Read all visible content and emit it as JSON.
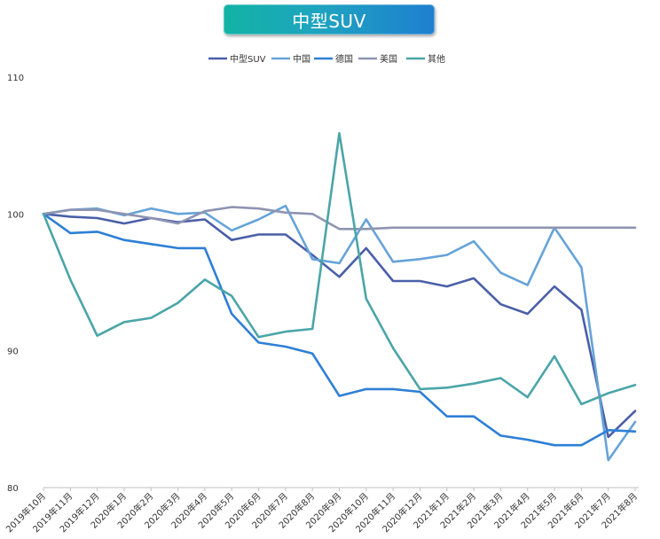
{
  "chart_data": {
    "type": "line",
    "title": "中型SUV",
    "categories": [
      "2019年10月",
      "2019年11月",
      "2019年12月",
      "2020年1月",
      "2020年2月",
      "2020年3月",
      "2020年4月",
      "2020年5月",
      "2020年6月",
      "2020年7月",
      "2020年8月",
      "2020年9月",
      "2020年10月",
      "2020年11月",
      "2020年12月",
      "2021年1月",
      "2021年2月",
      "2021年3月",
      "2021年4月",
      "2021年5月",
      "2021年6月",
      "2021年7月",
      "2021年8月"
    ],
    "ylim": [
      80,
      110
    ],
    "yticks": [
      80,
      90,
      100,
      110
    ],
    "grid": false,
    "legend_position": "top",
    "series": [
      {
        "name": "中型SUV",
        "color": "#4a5fa8",
        "values": [
          100,
          99.8,
          99.7,
          99.3,
          99.7,
          99.4,
          99.6,
          98.1,
          98.5,
          98.5,
          97.0,
          95.4,
          97.5,
          95.1,
          95.1,
          94.7,
          95.3,
          93.4,
          92.7,
          94.7,
          93.0,
          83.7,
          85.6
        ]
      },
      {
        "name": "中国",
        "color": "#66a3d9",
        "values": [
          100,
          100.3,
          100.4,
          99.9,
          100.4,
          100.0,
          100.1,
          98.8,
          99.6,
          100.6,
          96.7,
          96.4,
          99.6,
          96.5,
          96.7,
          97.0,
          98.0,
          95.7,
          94.8,
          99.0,
          96.1,
          82.0,
          84.8
        ]
      },
      {
        "name": "德国",
        "color": "#2e7fd6",
        "values": [
          100,
          98.6,
          98.7,
          98.1,
          97.8,
          97.5,
          97.5,
          92.7,
          90.6,
          90.3,
          89.8,
          86.7,
          87.2,
          87.2,
          87.0,
          85.2,
          85.2,
          83.8,
          83.5,
          83.1,
          83.1,
          84.2,
          84.1
        ]
      },
      {
        "name": "美国",
        "color": "#8e94b2",
        "values": [
          100,
          100.3,
          100.3,
          100.0,
          99.7,
          99.3,
          100.2,
          100.5,
          100.4,
          100.1,
          100.0,
          98.9,
          98.9,
          99.0,
          99.0,
          99.0,
          99.0,
          99.0,
          99.0,
          99.0,
          99.0,
          99.0,
          99.0
        ]
      },
      {
        "name": "其他",
        "color": "#4ba5a8",
        "values": [
          100,
          95.2,
          91.1,
          92.1,
          92.4,
          93.5,
          95.2,
          94.0,
          91.0,
          91.4,
          91.6,
          105.9,
          93.8,
          90.2,
          87.2,
          87.3,
          87.6,
          88.0,
          86.6,
          89.6,
          86.1,
          86.9,
          87.5
        ]
      }
    ]
  }
}
